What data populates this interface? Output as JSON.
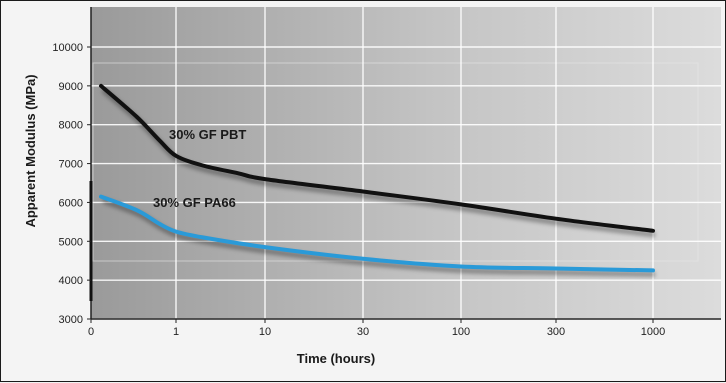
{
  "chart_data": {
    "type": "line",
    "title": "",
    "xlabel": "Time (hours)",
    "ylabel": "Apparent Modulus (MPa)",
    "x_scale": "log-like, 0 then decades",
    "x_ticks": [
      "0",
      "1",
      "10",
      "30",
      "100",
      "300",
      "1000"
    ],
    "y_ticks": [
      "3000",
      "4000",
      "5000",
      "6000",
      "7000",
      "8000",
      "9000",
      "10000"
    ],
    "ylim": [
      3000,
      10800
    ],
    "grid": true,
    "series": [
      {
        "name": "30% GF PBT",
        "color": "#111111",
        "points": [
          {
            "x": 0.1,
            "y": 9000
          },
          {
            "x": 0.3,
            "y": 8200
          },
          {
            "x": 0.6,
            "y": 7600
          },
          {
            "x": 1,
            "y": 7200
          },
          {
            "x": 2,
            "y": 6950
          },
          {
            "x": 5,
            "y": 6750
          },
          {
            "x": 10,
            "y": 6600
          },
          {
            "x": 30,
            "y": 6280
          },
          {
            "x": 100,
            "y": 5950
          },
          {
            "x": 300,
            "y": 5580
          },
          {
            "x": 1000,
            "y": 5270
          }
        ]
      },
      {
        "name": "30% GF PA66",
        "color": "#2a9ad8",
        "points": [
          {
            "x": 0.1,
            "y": 6150
          },
          {
            "x": 0.3,
            "y": 5800
          },
          {
            "x": 0.6,
            "y": 5450
          },
          {
            "x": 1,
            "y": 5250
          },
          {
            "x": 2,
            "y": 5100
          },
          {
            "x": 10,
            "y": 4850
          },
          {
            "x": 30,
            "y": 4550
          },
          {
            "x": 100,
            "y": 4350
          },
          {
            "x": 300,
            "y": 4300
          },
          {
            "x": 1000,
            "y": 4250
          }
        ]
      }
    ]
  }
}
